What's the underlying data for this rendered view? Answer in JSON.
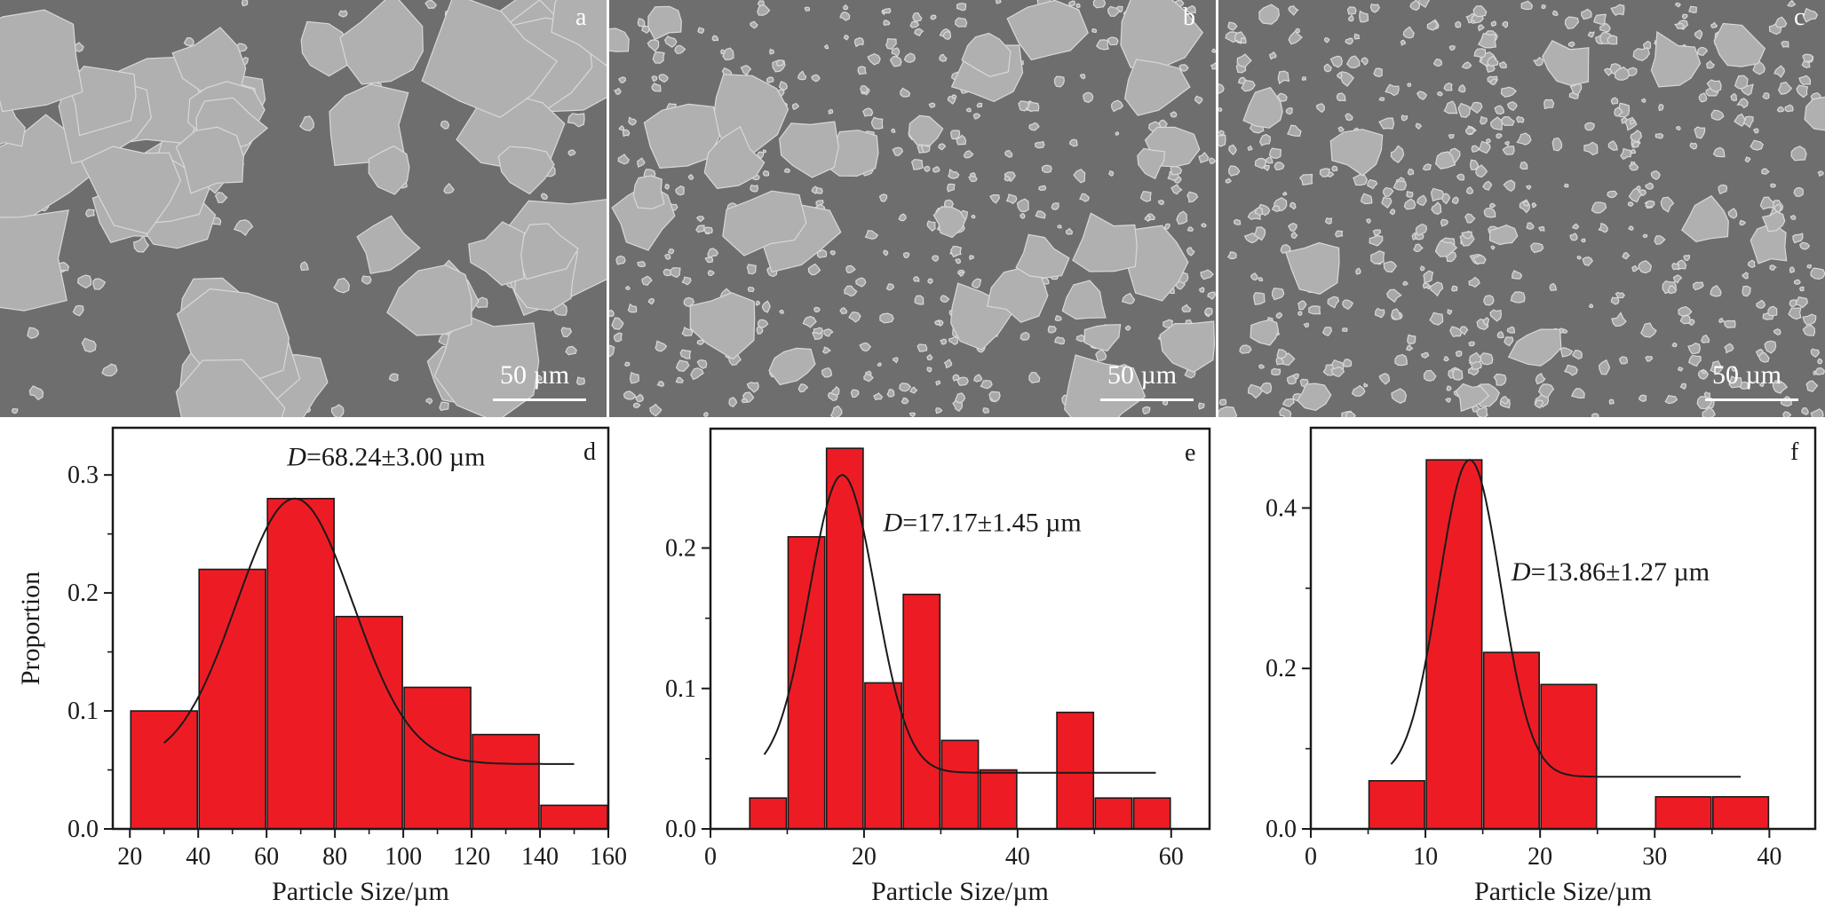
{
  "panels": [
    {
      "letter": "a",
      "scale_bar": "50 µm"
    },
    {
      "letter": "b",
      "scale_bar": "50 µm"
    },
    {
      "letter": "c",
      "scale_bar": "50 µm"
    }
  ],
  "colors": {
    "bar": "#ed1c24",
    "sem_background": "#6e6e6e",
    "particle": "#b0b0b0"
  },
  "chart_data": [
    {
      "type": "bar",
      "panel_letter": "d",
      "annotation": "D=68.24±3.00 µm",
      "xlabel": "Particle Size/µm",
      "ylabel": "Proportion",
      "xlim": [
        15,
        160
      ],
      "ylim": [
        0,
        0.34
      ],
      "xticks": [
        "20",
        "40",
        "60",
        "80",
        "100",
        "120",
        "140",
        "160"
      ],
      "yticks": [
        "0.0",
        "0.1",
        "0.2",
        "0.3"
      ],
      "bin_width": 20,
      "x": [
        30,
        50,
        70,
        90,
        110,
        130,
        150
      ],
      "values": [
        0.1,
        0.22,
        0.28,
        0.18,
        0.12,
        0.08,
        0.02
      ],
      "fit": {
        "type": "gaussian",
        "center": 68.24,
        "amplitude": 0.225,
        "sigma": 17,
        "baseline": 0.055,
        "range": [
          30,
          150
        ]
      }
    },
    {
      "type": "bar",
      "panel_letter": "e",
      "annotation": "D=17.17±1.45 µm",
      "xlabel": "Particle Size/µm",
      "ylabel": "",
      "xlim": [
        0,
        65
      ],
      "ylim": [
        0,
        0.285
      ],
      "xticks": [
        "0",
        "20",
        "40",
        "60"
      ],
      "yticks": [
        "0.0",
        "0.1",
        "0.2"
      ],
      "bin_width": 5,
      "x": [
        7.5,
        12.5,
        17.5,
        22.5,
        27.5,
        32.5,
        37.5,
        42.5,
        47.5,
        52.5,
        57.5
      ],
      "values": [
        0.022,
        0.208,
        0.271,
        0.104,
        0.167,
        0.063,
        0.042,
        0,
        0.083,
        0.022,
        0.022
      ],
      "fit": {
        "type": "gaussian",
        "center": 17.17,
        "amplitude": 0.212,
        "sigma": 4.3,
        "baseline": 0.04,
        "range": [
          7,
          58
        ]
      }
    },
    {
      "type": "bar",
      "panel_letter": "f",
      "annotation": "D=13.86±1.27 µm",
      "xlabel": "Particle Size/µm",
      "ylabel": "",
      "xlim": [
        0,
        44
      ],
      "ylim": [
        0,
        0.5
      ],
      "xticks": [
        "0",
        "10",
        "20",
        "30",
        "40"
      ],
      "yticks": [
        "0.0",
        "0.2",
        "0.4"
      ],
      "bin_width": 5,
      "x": [
        7.5,
        12.5,
        17.5,
        22.5,
        27.5,
        32.5,
        37.5
      ],
      "values": [
        0.06,
        0.46,
        0.22,
        0.18,
        0,
        0.04,
        0.04
      ],
      "fit": {
        "type": "gaussian",
        "center": 13.86,
        "amplitude": 0.395,
        "sigma": 2.7,
        "baseline": 0.065,
        "range": [
          7,
          37.5
        ]
      }
    }
  ]
}
